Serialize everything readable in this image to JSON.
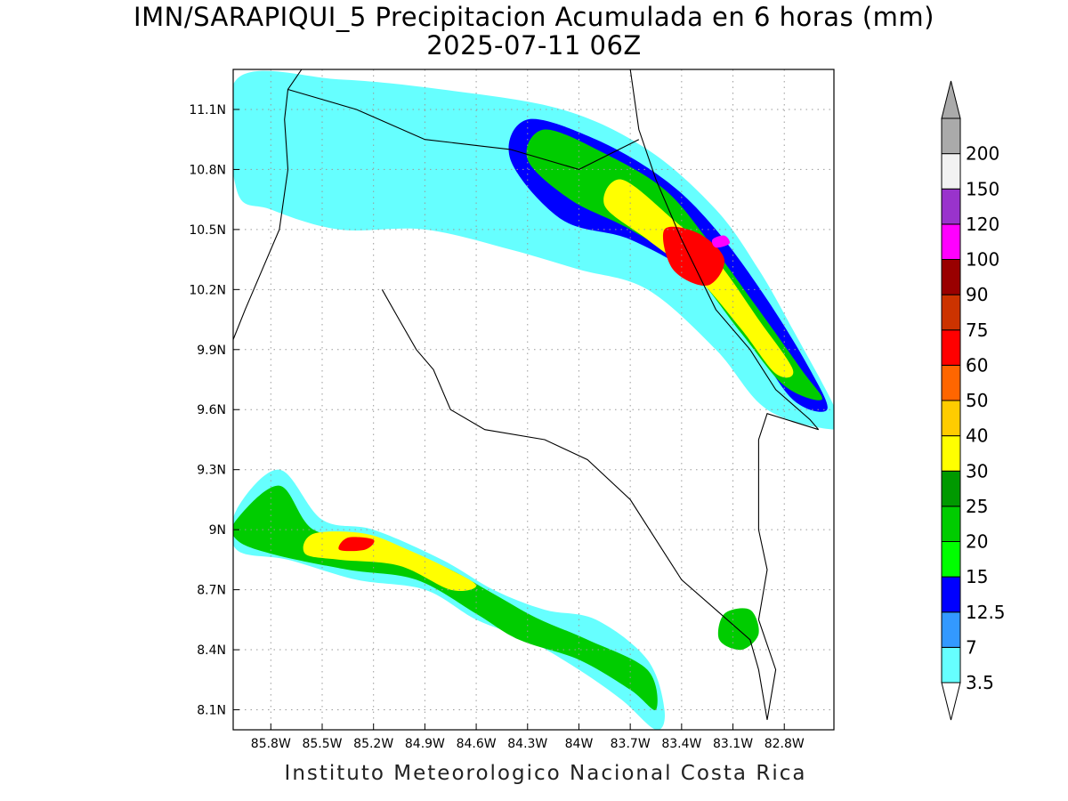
{
  "title": {
    "line1": "IMN/SARAPIQUI_5 Precipitacion Acumulada en 6 horas (mm)",
    "line2": "2025-07-11 06Z"
  },
  "credit": "Instituto Meteorologico Nacional Costa Rica",
  "map": {
    "lon_range": [
      -86.02,
      -82.51
    ],
    "lat_range": [
      8.0,
      11.3
    ],
    "lon_ticks": [
      {
        "value": -85.8,
        "label": "85.8W"
      },
      {
        "value": -85.5,
        "label": "85.5W"
      },
      {
        "value": -85.2,
        "label": "85.2W"
      },
      {
        "value": -84.9,
        "label": "84.9W"
      },
      {
        "value": -84.6,
        "label": "84.6W"
      },
      {
        "value": -84.3,
        "label": "84.3W"
      },
      {
        "value": -84.0,
        "label": "84W"
      },
      {
        "value": -83.7,
        "label": "83.7W"
      },
      {
        "value": -83.4,
        "label": "83.4W"
      },
      {
        "value": -83.1,
        "label": "83.1W"
      },
      {
        "value": -82.8,
        "label": "82.8W"
      }
    ],
    "lat_ticks": [
      {
        "value": 11.1,
        "label": "11.1N"
      },
      {
        "value": 10.8,
        "label": "10.8N"
      },
      {
        "value": 10.5,
        "label": "10.5N"
      },
      {
        "value": 10.2,
        "label": "10.2N"
      },
      {
        "value": 9.9,
        "label": "9.9N"
      },
      {
        "value": 9.6,
        "label": "9.6N"
      },
      {
        "value": 9.3,
        "label": "9.3N"
      },
      {
        "value": 9.0,
        "label": "9N"
      },
      {
        "value": 8.7,
        "label": "8.7N"
      },
      {
        "value": 8.4,
        "label": "8.4N"
      },
      {
        "value": 8.1,
        "label": "8.1N"
      }
    ],
    "grid": "dotted"
  },
  "colorbar": {
    "levels": [
      {
        "label": "3.5",
        "color": "#66ffff"
      },
      {
        "label": "7",
        "color": "#3399ff"
      },
      {
        "label": "12.5",
        "color": "#0000ff"
      },
      {
        "label": "15",
        "color": "#00ff00"
      },
      {
        "label": "20",
        "color": "#00cc00"
      },
      {
        "label": "25",
        "color": "#009900"
      },
      {
        "label": "30",
        "color": "#ffff00"
      },
      {
        "label": "40",
        "color": "#ffcc00"
      },
      {
        "label": "50",
        "color": "#ff6600"
      },
      {
        "label": "60",
        "color": "#ff0000"
      },
      {
        "label": "75",
        "color": "#cc3300"
      },
      {
        "label": "90",
        "color": "#990000"
      },
      {
        "label": "100",
        "color": "#ff00ff"
      },
      {
        "label": "120",
        "color": "#9933cc"
      },
      {
        "label": "150",
        "color": "#f2f2f2"
      },
      {
        "label": "200",
        "color": "#aaaaaa"
      }
    ]
  },
  "precipitation_bands": [
    {
      "name": "northern-caribbean-band",
      "pts": [
        [
          -86.0,
          11.25
        ],
        [
          -85.4,
          11.25
        ],
        [
          -84.8,
          11.2
        ],
        [
          -84.1,
          11.1
        ],
        [
          -83.6,
          10.9
        ],
        [
          -83.2,
          10.6
        ],
        [
          -82.95,
          10.3
        ],
        [
          -82.75,
          10.0
        ],
        [
          -82.5,
          9.6
        ],
        [
          -82.5,
          9.5
        ],
        [
          -82.9,
          9.6
        ],
        [
          -83.2,
          9.9
        ],
        [
          -83.6,
          10.2
        ],
        [
          -84.0,
          10.3
        ],
        [
          -84.4,
          10.4
        ],
        [
          -84.9,
          10.5
        ],
        [
          -85.4,
          10.5
        ],
        [
          -85.8,
          10.6
        ],
        [
          -86.0,
          10.7
        ]
      ],
      "min_level": 0
    },
    {
      "name": "north-blue-core",
      "pts": [
        [
          -84.3,
          11.05
        ],
        [
          -83.9,
          10.95
        ],
        [
          -83.5,
          10.75
        ],
        [
          -83.2,
          10.5
        ],
        [
          -82.9,
          10.15
        ],
        [
          -82.65,
          9.8
        ],
        [
          -82.55,
          9.6
        ],
        [
          -82.75,
          9.65
        ],
        [
          -83.0,
          9.95
        ],
        [
          -83.3,
          10.25
        ],
        [
          -83.7,
          10.45
        ],
        [
          -84.1,
          10.55
        ],
        [
          -84.4,
          10.85
        ]
      ],
      "min_level": 2
    },
    {
      "name": "north-green-core",
      "pts": [
        [
          -84.2,
          11.0
        ],
        [
          -83.85,
          10.88
        ],
        [
          -83.5,
          10.7
        ],
        [
          -83.25,
          10.45
        ],
        [
          -82.95,
          10.1
        ],
        [
          -82.7,
          9.8
        ],
        [
          -82.58,
          9.65
        ],
        [
          -82.8,
          9.72
        ],
        [
          -83.05,
          9.98
        ],
        [
          -83.35,
          10.3
        ],
        [
          -83.7,
          10.5
        ],
        [
          -84.05,
          10.65
        ],
        [
          -84.3,
          10.85
        ]
      ],
      "min_level": 4
    },
    {
      "name": "north-yellow-core",
      "pts": [
        [
          -83.75,
          10.75
        ],
        [
          -83.45,
          10.55
        ],
        [
          -83.2,
          10.35
        ],
        [
          -82.95,
          10.05
        ],
        [
          -82.75,
          9.8
        ],
        [
          -82.85,
          9.78
        ],
        [
          -83.05,
          10.0
        ],
        [
          -83.3,
          10.25
        ],
        [
          -83.6,
          10.45
        ],
        [
          -83.85,
          10.62
        ]
      ],
      "min_level": 6
    },
    {
      "name": "north-red-core",
      "pts": [
        [
          -83.5,
          10.5
        ],
        [
          -83.3,
          10.48
        ],
        [
          -83.15,
          10.35
        ],
        [
          -83.25,
          10.22
        ],
        [
          -83.45,
          10.3
        ]
      ],
      "min_level": 9
    },
    {
      "name": "north-magenta-spot",
      "pts": [
        [
          -83.22,
          10.45
        ],
        [
          -83.15,
          10.47
        ],
        [
          -83.12,
          10.43
        ],
        [
          -83.2,
          10.41
        ]
      ],
      "min_level": 12
    },
    {
      "name": "south-pacific-band",
      "pts": [
        [
          -86.0,
          9.1
        ],
        [
          -85.75,
          9.3
        ],
        [
          -85.5,
          9.05
        ],
        [
          -85.2,
          9.0
        ],
        [
          -84.8,
          8.85
        ],
        [
          -84.5,
          8.7
        ],
        [
          -84.2,
          8.6
        ],
        [
          -83.9,
          8.55
        ],
        [
          -83.6,
          8.35
        ],
        [
          -83.5,
          8.1
        ],
        [
          -83.55,
          8.0
        ],
        [
          -83.75,
          8.15
        ],
        [
          -84.0,
          8.3
        ],
        [
          -84.3,
          8.45
        ],
        [
          -84.6,
          8.55
        ],
        [
          -84.9,
          8.7
        ],
        [
          -85.3,
          8.75
        ],
        [
          -85.7,
          8.85
        ],
        [
          -86.0,
          8.9
        ]
      ],
      "min_level": 0
    },
    {
      "name": "south-green-core",
      "pts": [
        [
          -86.0,
          9.05
        ],
        [
          -85.75,
          9.22
        ],
        [
          -85.55,
          9.0
        ],
        [
          -85.2,
          8.95
        ],
        [
          -84.8,
          8.82
        ],
        [
          -84.5,
          8.68
        ],
        [
          -84.25,
          8.56
        ],
        [
          -83.95,
          8.45
        ],
        [
          -83.6,
          8.3
        ],
        [
          -83.55,
          8.1
        ],
        [
          -83.7,
          8.2
        ],
        [
          -84.0,
          8.35
        ],
        [
          -84.35,
          8.45
        ],
        [
          -84.6,
          8.58
        ],
        [
          -84.95,
          8.75
        ],
        [
          -85.35,
          8.8
        ],
        [
          -85.8,
          8.88
        ],
        [
          -86.0,
          8.95
        ]
      ],
      "min_level": 4
    },
    {
      "name": "south-yellow-core",
      "pts": [
        [
          -85.55,
          8.98
        ],
        [
          -85.25,
          8.98
        ],
        [
          -85.0,
          8.9
        ],
        [
          -84.75,
          8.8
        ],
        [
          -84.6,
          8.72
        ],
        [
          -84.75,
          8.7
        ],
        [
          -85.05,
          8.82
        ],
        [
          -85.4,
          8.85
        ],
        [
          -85.6,
          8.88
        ]
      ],
      "min_level": 6
    },
    {
      "name": "south-red-core",
      "pts": [
        [
          -85.35,
          8.96
        ],
        [
          -85.2,
          8.95
        ],
        [
          -85.25,
          8.9
        ],
        [
          -85.4,
          8.9
        ]
      ],
      "min_level": 9
    },
    {
      "name": "southeast-cell",
      "pts": [
        [
          -83.15,
          8.58
        ],
        [
          -83.0,
          8.6
        ],
        [
          -82.95,
          8.48
        ],
        [
          -83.05,
          8.4
        ],
        [
          -83.18,
          8.45
        ]
      ],
      "min_level": 4
    }
  ],
  "coastlines": [
    {
      "name": "pacific-north-coast",
      "pts": [
        [
          -86.02,
          9.95
        ],
        [
          -85.95,
          10.1
        ],
        [
          -85.85,
          10.3
        ],
        [
          -85.75,
          10.5
        ],
        [
          -85.7,
          10.8
        ],
        [
          -85.72,
          11.05
        ],
        [
          -85.7,
          11.2
        ],
        [
          -85.62,
          11.3
        ]
      ]
    },
    {
      "name": "nicoya-gulf-coast",
      "pts": [
        [
          -85.15,
          10.2
        ],
        [
          -85.05,
          10.05
        ],
        [
          -84.95,
          9.9
        ],
        [
          -84.85,
          9.8
        ],
        [
          -84.75,
          9.6
        ],
        [
          -84.55,
          9.5
        ],
        [
          -84.2,
          9.45
        ],
        [
          -83.95,
          9.35
        ],
        [
          -83.7,
          9.15
        ],
        [
          -83.55,
          8.95
        ],
        [
          -83.4,
          8.75
        ],
        [
          -83.2,
          8.6
        ],
        [
          -83.0,
          8.45
        ],
        [
          -82.95,
          8.3
        ],
        [
          -82.9,
          8.05
        ]
      ]
    },
    {
      "name": "caribbean-coast",
      "pts": [
        [
          -83.7,
          11.3
        ],
        [
          -83.65,
          11.0
        ],
        [
          -83.55,
          10.75
        ],
        [
          -83.4,
          10.45
        ],
        [
          -83.2,
          10.1
        ],
        [
          -83.0,
          9.9
        ],
        [
          -82.85,
          9.7
        ],
        [
          -82.65,
          9.55
        ],
        [
          -82.6,
          9.5
        ]
      ]
    },
    {
      "name": "nicaragua-border",
      "pts": [
        [
          -85.7,
          11.2
        ],
        [
          -85.3,
          11.1
        ],
        [
          -84.9,
          10.95
        ],
        [
          -84.4,
          10.9
        ],
        [
          -84.0,
          10.8
        ],
        [
          -83.65,
          10.95
        ]
      ]
    },
    {
      "name": "panama-border",
      "pts": [
        [
          -82.6,
          9.5
        ],
        [
          -82.9,
          9.58
        ],
        [
          -82.95,
          9.45
        ],
        [
          -82.95,
          9.0
        ],
        [
          -82.9,
          8.8
        ],
        [
          -82.95,
          8.55
        ],
        [
          -82.85,
          8.3
        ],
        [
          -82.9,
          8.05
        ]
      ]
    }
  ]
}
